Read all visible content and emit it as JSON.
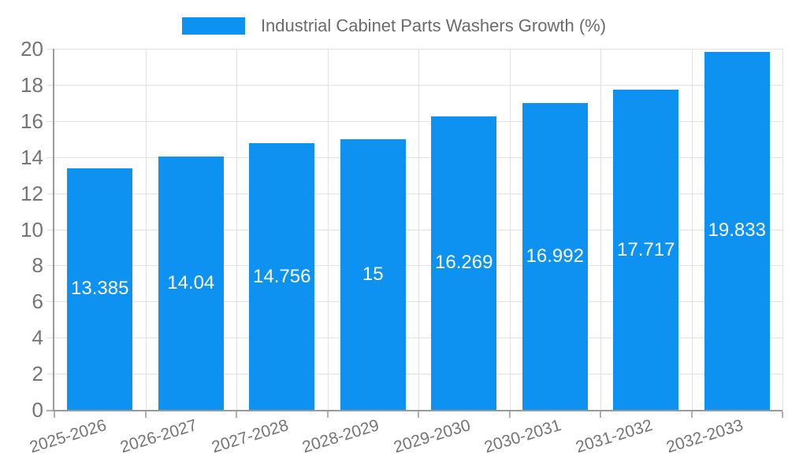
{
  "chart_data": {
    "type": "bar",
    "title": "Industrial Cabinet Parts Washers Growth (%)",
    "categories": [
      "2025-2026",
      "2026-2027",
      "2027-2028",
      "2028-2029",
      "2029-2030",
      "2030-2031",
      "2031-2032",
      "2032-2033"
    ],
    "values": [
      13.385,
      14.04,
      14.756,
      15,
      16.269,
      16.992,
      17.717,
      19.833
    ],
    "value_labels": [
      "13.385",
      "14.04",
      "14.756",
      "15",
      "16.269",
      "16.992",
      "17.717",
      "19.833"
    ],
    "xlabel": "",
    "ylabel": "",
    "ylim": [
      0,
      20
    ],
    "yticks": [
      "0",
      "2",
      "4",
      "6",
      "8",
      "10",
      "12",
      "14",
      "16",
      "18",
      "20"
    ],
    "grid": "on",
    "legend_position": "top-center",
    "colors": {
      "bar": "#0d92f2",
      "value_label": "#ffffff",
      "axis_text": "#757575",
      "title_text": "#6b6b6b",
      "axis_line": "#9a9a9a",
      "gridline": "#e2e2e2",
      "tick": "#b0b0b0",
      "background": "#ffffff"
    }
  }
}
